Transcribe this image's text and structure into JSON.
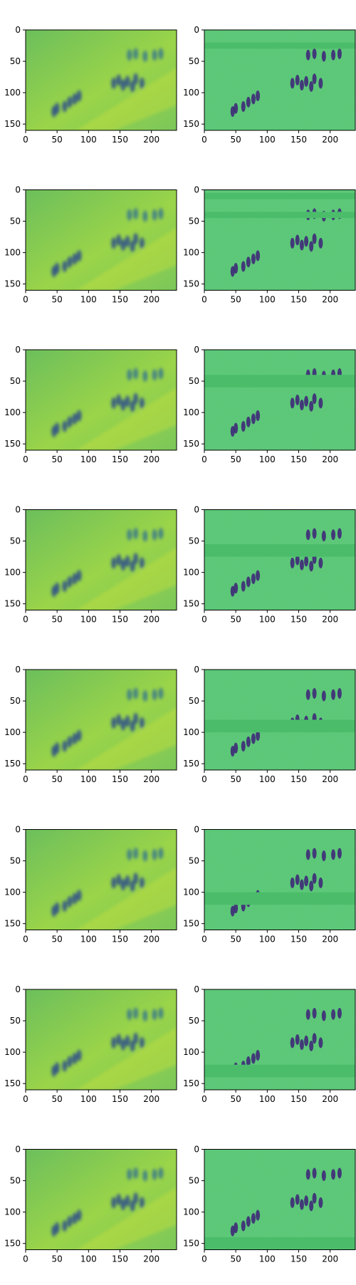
{
  "figure": {
    "layout": {
      "rows": 8,
      "cols": 2
    },
    "colormap": [
      "#440154",
      "#3b528b",
      "#21918c",
      "#5ec962",
      "#fde725"
    ],
    "axes": {
      "xlim": [
        0,
        240
      ],
      "ylim": [
        160,
        0
      ],
      "xticks": [
        0,
        50,
        100,
        150,
        200
      ],
      "yticks": [
        0,
        50,
        100,
        150
      ],
      "xtick_labels": [
        "0",
        "50",
        "100",
        "150",
        "200"
      ],
      "ytick_labels": [
        "0",
        "50",
        "100",
        "150"
      ]
    },
    "left_panel": {
      "kind": "blurred-reconstruction",
      "base_color": "#73c35a"
    },
    "right_panel": {
      "kind": "detail-map",
      "base_color": "#5ec962",
      "band_color": "#4bbd6a"
    },
    "band_rows": [
      [
        20,
        30
      ],
      [
        5,
        15,
        35,
        45
      ],
      [
        40,
        60
      ],
      [
        55,
        75
      ],
      [
        80,
        100
      ],
      [
        100,
        120
      ],
      [
        120,
        140
      ],
      [
        140,
        160
      ]
    ]
  }
}
